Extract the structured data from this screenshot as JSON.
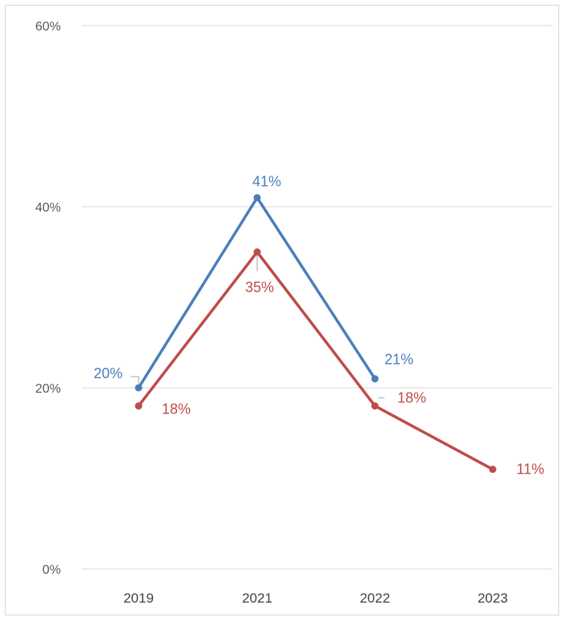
{
  "chart_data": {
    "type": "line",
    "title": "",
    "xlabel": "",
    "ylabel": "",
    "categories": [
      "2019",
      "2021",
      "2022",
      "2023"
    ],
    "ylim": [
      0,
      60
    ],
    "y_ticks": [
      0,
      20,
      40,
      60
    ],
    "y_tick_labels": [
      "0%",
      "20%",
      "40%",
      "60%"
    ],
    "grid": true,
    "legend": "none",
    "series": [
      {
        "color": "#4a7ebb",
        "values": [
          20,
          41,
          21,
          null
        ],
        "labels": [
          "20%",
          "41%",
          "21%",
          null
        ]
      },
      {
        "color": "#be4b48",
        "values": [
          18,
          35,
          18,
          11
        ],
        "labels": [
          "18%",
          "35%",
          "18%",
          "11%"
        ]
      }
    ]
  }
}
